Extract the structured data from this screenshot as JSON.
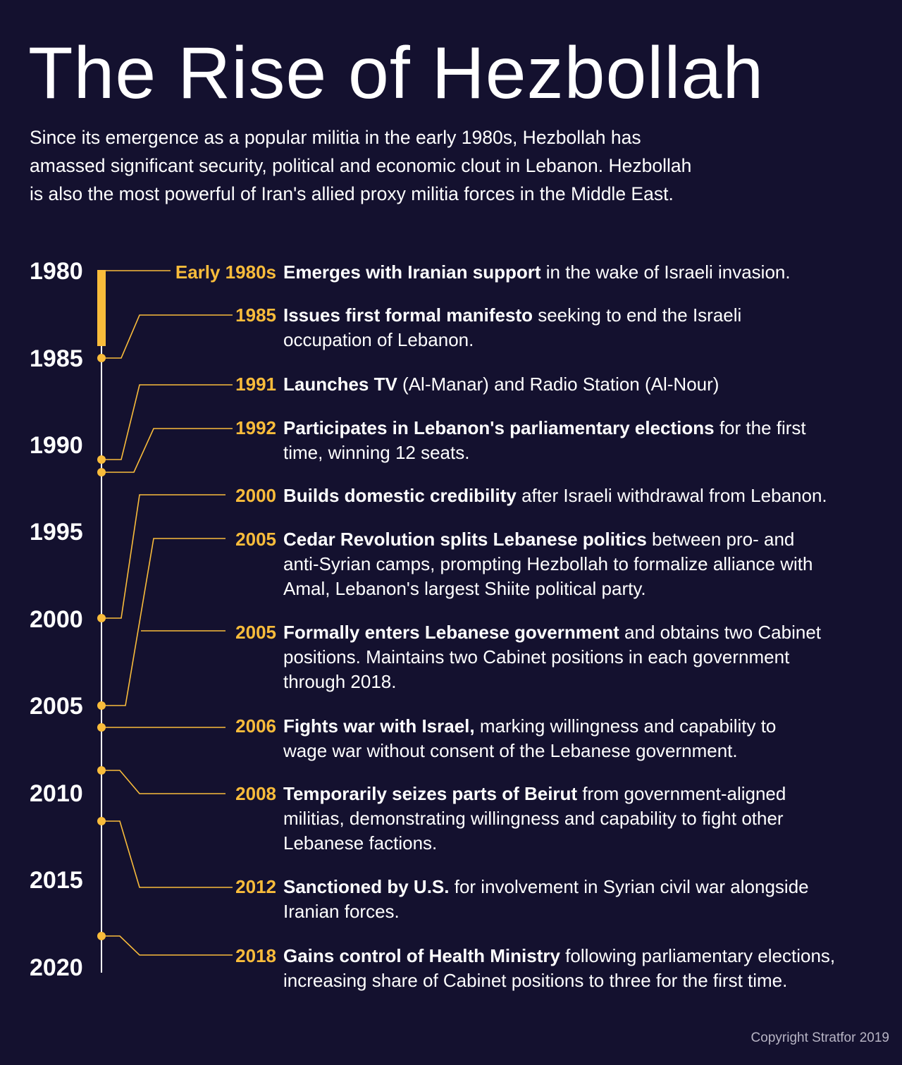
{
  "title": "The Rise of Hezbollah",
  "intro_lines": [
    "Since its emergence as a popular militia in the early 1980s, Hezbollah has",
    "amassed significant security, political and economic clout in Lebanon. Hezbollah",
    "is also the most powerful of Iran's allied proxy militia forces in the Middle East."
  ],
  "colors": {
    "background": "#14112f",
    "accent": "#f9bc3b",
    "axis": "#ffffff"
  },
  "axis_years": [
    "1980",
    "1985",
    "1990",
    "1995",
    "2000",
    "2005",
    "2010",
    "2015",
    "2020"
  ],
  "events": [
    {
      "year": "Early 1980s",
      "bold": "Emerges with Iranian support",
      "rest": " in the wake of Israeli invasion."
    },
    {
      "year": "1985",
      "bold": "Issues first formal manifesto",
      "rest": " seeking to end the Israeli occupation of Lebanon."
    },
    {
      "year": "1991",
      "bold": "Launches TV",
      "rest": " (Al-Manar) and Radio Station (Al-Nour)"
    },
    {
      "year": "1992",
      "bold": "Participates in Lebanon's parliamentary elections",
      "rest": " for the first time, winning 12 seats."
    },
    {
      "year": "2000",
      "bold": "Builds domestic credibility",
      "rest": " after Israeli withdrawal from Lebanon."
    },
    {
      "year": "2005",
      "bold": "Cedar Revolution splits Lebanese politics",
      "rest": " between pro- and anti-Syrian camps, prompting Hezbollah to formalize alliance with Amal, Lebanon's largest Shiite political party."
    },
    {
      "year": "2005",
      "bold": "Formally enters Lebanese government",
      "rest": " and obtains two Cabinet positions. Maintains two Cabinet positions in each government through 2018."
    },
    {
      "year": "2006",
      "bold": "Fights war with Israel,",
      "rest": " marking willingness and capability to wage war without consent of the Lebanese government."
    },
    {
      "year": "2008",
      "bold": "Temporarily seizes parts of Beirut",
      "rest": " from government-aligned militias, demonstrating willingness and capability to fight other Lebanese factions."
    },
    {
      "year": "2012",
      "bold": "Sanctioned by U.S.",
      "rest": " for involvement in Syrian civil war alongside Iranian forces."
    },
    {
      "year": "2018",
      "bold": "Gains control of Health Ministry",
      "rest": " following parliamentary elections, increasing share of Cabinet positions to three for the first time."
    }
  ],
  "copyright": "Copyright Stratfor 2019"
}
